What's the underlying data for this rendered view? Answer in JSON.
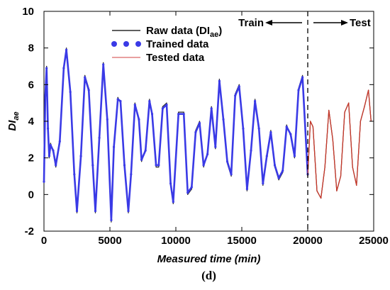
{
  "chart_data": {
    "type": "line",
    "title": "",
    "xlabel": "Measured time (min)",
    "ylabel_main": "DI",
    "ylabel_sub": "ae",
    "xlim": [
      0,
      25000
    ],
    "ylim": [
      -2,
      10
    ],
    "xticks": [
      0,
      5000,
      10000,
      15000,
      20000,
      25000
    ],
    "yticks": [
      -2,
      0,
      2,
      4,
      6,
      8,
      10
    ],
    "grid": false,
    "legend_position": "top-center",
    "legend": [
      {
        "label_main": "Raw data (DI",
        "label_sub": "ae",
        "label_end": ")",
        "style": "line",
        "color": "#2b2b2b"
      },
      {
        "label": "Trained data",
        "style": "dots",
        "color": "#3a3ae6"
      },
      {
        "label": "Tested data",
        "style": "line",
        "color": "#e08080"
      }
    ],
    "split": {
      "x": 20000,
      "train_label": "Train",
      "test_label": "Test"
    },
    "panel_label": "(d)",
    "series": [
      {
        "name": "Raw data (DIae)",
        "color": "#2b2b2b",
        "x": [
          0,
          100,
          200,
          300,
          400,
          500,
          700,
          900,
          1200,
          1500,
          1700,
          2000,
          2300,
          2500,
          2800,
          3100,
          3400,
          3700,
          3900,
          4200,
          4500,
          4800,
          5100,
          5300,
          5600,
          5800,
          6100,
          6400,
          6600,
          6900,
          7200,
          7400,
          7700,
          8000,
          8200,
          8500,
          8700,
          9000,
          9300,
          9600,
          9800,
          10200,
          10600,
          10900,
          11200,
          11500,
          11800,
          12100,
          12400,
          12700,
          13000,
          13300,
          13600,
          13900,
          14200,
          14500,
          14800,
          15100,
          15400,
          15700,
          16000,
          16300,
          16600,
          16900,
          17200,
          17500,
          17800,
          18100,
          18400,
          18700,
          19000,
          19300,
          19600,
          20000,
          20200,
          20400,
          20700,
          21000,
          21300,
          21600,
          21900,
          22200,
          22500,
          22800,
          23100,
          23400,
          23700,
          24000,
          24300,
          24600,
          24800
        ],
        "y": [
          0.8,
          5.5,
          7.0,
          3.5,
          2.0,
          2.8,
          2.3,
          1.5,
          2.8,
          7.0,
          8.0,
          5.5,
          1.0,
          -1.0,
          2.0,
          6.5,
          5.8,
          1.5,
          -1.0,
          3.0,
          7.2,
          4.0,
          -1.5,
          2.5,
          5.3,
          5.0,
          1.5,
          -1.0,
          1.0,
          5.0,
          4.0,
          1.8,
          2.5,
          5.2,
          4.3,
          1.5,
          1.5,
          4.8,
          5.0,
          0.5,
          -0.5,
          4.5,
          4.5,
          0.0,
          0.3,
          3.5,
          4.0,
          1.5,
          2.3,
          4.8,
          2.5,
          6.3,
          4.0,
          1.7,
          1.0,
          5.5,
          6.0,
          3.5,
          0.2,
          2.5,
          5.2,
          3.5,
          0.5,
          2.2,
          3.5,
          1.5,
          0.8,
          1.2,
          3.8,
          3.2,
          2.0,
          5.8,
          6.5,
          1.0,
          4.0,
          3.7,
          0.2,
          -0.2,
          1.5,
          4.6,
          3.0,
          0.2,
          1.0,
          4.5,
          5.0,
          1.5,
          0.5,
          4.0,
          4.8,
          5.7,
          4.0
        ]
      },
      {
        "name": "Trained data",
        "color": "#3a3ae6",
        "x": [
          0,
          100,
          200,
          300,
          400,
          500,
          700,
          900,
          1200,
          1500,
          1700,
          2000,
          2300,
          2500,
          2800,
          3100,
          3400,
          3700,
          3900,
          4200,
          4500,
          4800,
          5100,
          5300,
          5600,
          5800,
          6100,
          6400,
          6600,
          6900,
          7200,
          7400,
          7700,
          8000,
          8200,
          8500,
          8700,
          9000,
          9300,
          9600,
          9800,
          10200,
          10600,
          10900,
          11200,
          11500,
          11800,
          12100,
          12400,
          12700,
          13000,
          13300,
          13600,
          13900,
          14200,
          14500,
          14800,
          15100,
          15400,
          15700,
          16000,
          16300,
          16600,
          16900,
          17200,
          17500,
          17800,
          18100,
          18400,
          18700,
          19000,
          19300,
          19600,
          20000
        ],
        "y": [
          0.7,
          5.4,
          6.9,
          3.6,
          2.1,
          2.7,
          2.4,
          1.6,
          2.9,
          6.9,
          7.9,
          5.6,
          1.1,
          -0.9,
          2.1,
          6.4,
          5.7,
          1.6,
          -0.9,
          3.1,
          7.1,
          4.1,
          -1.4,
          2.6,
          5.2,
          5.1,
          1.6,
          -0.9,
          1.1,
          4.9,
          4.1,
          1.9,
          2.4,
          5.1,
          4.4,
          1.6,
          1.6,
          4.7,
          4.9,
          0.6,
          -0.4,
          4.4,
          4.4,
          0.1,
          0.4,
          3.4,
          3.9,
          1.6,
          2.2,
          4.7,
          2.6,
          6.2,
          4.1,
          1.8,
          1.1,
          5.4,
          5.9,
          3.6,
          0.3,
          2.4,
          5.1,
          3.6,
          0.6,
          2.1,
          3.4,
          1.6,
          0.9,
          1.3,
          3.7,
          3.3,
          2.1,
          5.7,
          6.4,
          1.1
        ]
      },
      {
        "name": "Tested data",
        "color": "#c8382a",
        "x": [
          20000,
          20200,
          20400,
          20700,
          21000,
          21300,
          21600,
          21900,
          22200,
          22500,
          22800,
          23100,
          23400,
          23700,
          24000,
          24300,
          24600,
          24800
        ],
        "y": [
          1.0,
          4.0,
          3.7,
          0.2,
          -0.2,
          1.5,
          4.6,
          3.0,
          0.2,
          1.0,
          4.5,
          5.0,
          1.5,
          0.5,
          4.0,
          4.8,
          5.7,
          4.0
        ]
      }
    ]
  }
}
